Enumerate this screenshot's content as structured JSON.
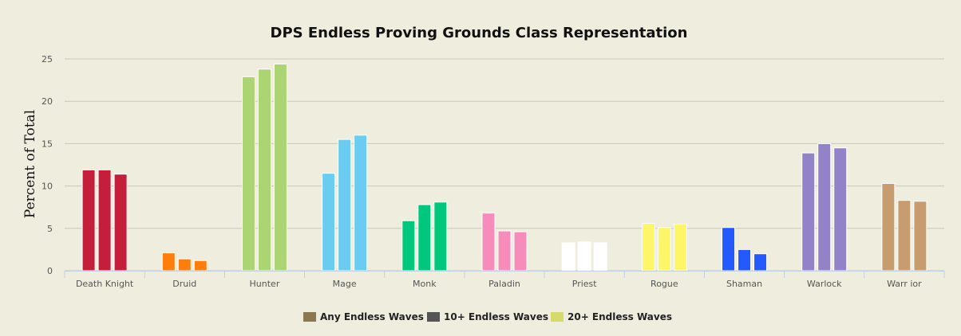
{
  "chart_data": {
    "type": "bar",
    "title": "DPS Endless Proving Grounds Class Representation",
    "xlabel": "",
    "ylabel": "Percent of Total",
    "ylim": [
      0,
      25
    ],
    "yticks": [
      0,
      5,
      10,
      15,
      20,
      25
    ],
    "grid": true,
    "legend_position": "bottom",
    "categories": [
      "Death Knight",
      "Druid",
      "Hunter",
      "Mage",
      "Monk",
      "Paladin",
      "Priest",
      "Rogue",
      "Shaman",
      "Warlock",
      "Warr ior"
    ],
    "category_colors": [
      "#c41e3a",
      "#ff7d0a",
      "#abd473",
      "#69ccf0",
      "#00c77b",
      "#f58cba",
      "#ffffff",
      "#fff569",
      "#2459ff",
      "#9482c9",
      "#c79c6e"
    ],
    "series": [
      {
        "name": "Any Endless Waves",
        "values": [
          11.9,
          2.1,
          22.9,
          11.5,
          5.9,
          6.8,
          3.3,
          5.6,
          5.1,
          13.9,
          10.3
        ]
      },
      {
        "name": "10+ Endless Waves",
        "values": [
          11.9,
          1.4,
          23.8,
          15.5,
          7.8,
          4.7,
          3.4,
          5.1,
          2.5,
          15.0,
          8.3
        ]
      },
      {
        "name": "20+ Endless Waves",
        "values": [
          11.4,
          1.2,
          24.4,
          16.0,
          8.1,
          4.6,
          3.3,
          5.5,
          2.0,
          14.5,
          8.2
        ]
      }
    ],
    "legend": [
      {
        "label": "Any Endless Waves",
        "color": "#8b7750"
      },
      {
        "label": "10+ Endless Waves",
        "color": "#555555"
      },
      {
        "label": "20+ Endless Waves",
        "color": "#d7d96b"
      }
    ]
  }
}
